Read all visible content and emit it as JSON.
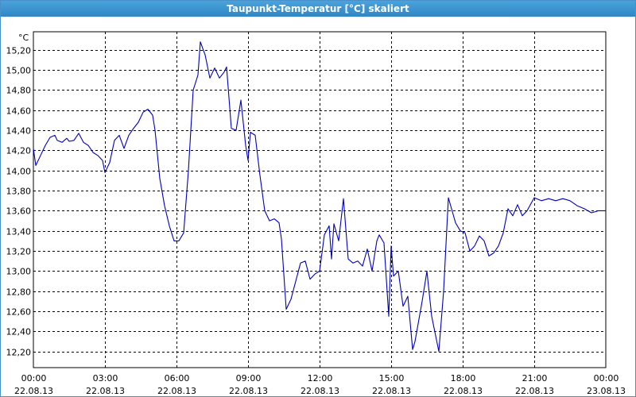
{
  "window": {
    "title": "Taupunkt-Temperatur [°C] skaliert"
  },
  "chart_data": {
    "type": "line",
    "title": "Taupunkt-Temperatur [°C] skaliert",
    "ylabel": "°C",
    "xlabel": "",
    "ylim": [
      12.04,
      15.38
    ],
    "xlim": [
      0,
      24
    ],
    "grid": true,
    "line_color": "#0000c0",
    "yticks": [
      12.2,
      12.4,
      12.6,
      12.8,
      13.0,
      13.2,
      13.4,
      13.6,
      13.8,
      14.0,
      14.2,
      14.4,
      14.6,
      14.8,
      15.0,
      15.2
    ],
    "ytick_labels": [
      "12,20",
      "12,40",
      "12,60",
      "12,80",
      "13,00",
      "13,20",
      "13,40",
      "13,60",
      "13,80",
      "14,00",
      "14,20",
      "14,40",
      "14,60",
      "14,80",
      "15,00",
      "15,20"
    ],
    "xticks": [
      {
        "time": "00:00",
        "date": "22.08.13"
      },
      {
        "time": "03:00",
        "date": "22.08.13"
      },
      {
        "time": "06:00",
        "date": "22.08.13"
      },
      {
        "time": "09:00",
        "date": "22.08.13"
      },
      {
        "time": "12:00",
        "date": "22.08.13"
      },
      {
        "time": "15:00",
        "date": "22.08.13"
      },
      {
        "time": "18:00",
        "date": "22.08.13"
      },
      {
        "time": "21:00",
        "date": "22.08.13"
      },
      {
        "time": "00:00",
        "date": "23.08.13"
      }
    ],
    "series": [
      {
        "x": [
          0.0,
          0.1,
          0.3,
          0.5,
          0.7,
          0.9,
          1.0,
          1.2,
          1.4,
          1.5,
          1.7,
          1.9,
          2.1,
          2.3,
          2.5,
          2.7,
          2.9,
          3.0,
          3.2,
          3.4,
          3.6,
          3.8,
          4.0,
          4.2,
          4.4,
          4.6,
          4.8,
          5.0,
          5.1,
          5.3,
          5.5,
          5.7,
          5.9,
          6.1,
          6.3,
          6.5,
          6.7,
          6.9,
          7.0,
          7.2,
          7.4,
          7.6,
          7.8,
          8.0,
          8.1,
          8.3,
          8.5,
          8.7,
          8.9,
          9.0,
          9.1,
          9.3,
          9.5,
          9.7,
          9.9,
          10.1,
          10.3,
          10.4,
          10.6,
          10.8,
          11.0,
          11.2,
          11.4,
          11.6,
          11.8,
          12.0,
          12.2,
          12.4,
          12.5,
          12.6,
          12.8,
          13.0,
          13.2,
          13.4,
          13.6,
          13.8,
          14.0,
          14.2,
          14.4,
          14.5,
          14.7,
          14.9,
          15.0,
          15.1,
          15.3,
          15.5,
          15.7,
          15.9,
          16.0,
          16.3,
          16.5,
          16.7,
          17.0,
          17.2,
          17.4,
          17.7,
          17.9,
          18.1,
          18.3,
          18.5,
          18.7,
          18.9,
          19.1,
          19.3,
          19.5,
          19.7,
          19.9,
          20.1,
          20.3,
          20.5,
          20.7,
          21.0,
          21.3,
          21.6,
          21.9,
          22.2,
          22.5,
          22.8,
          23.1,
          23.4,
          23.7,
          24.0
        ],
        "y": [
          14.22,
          14.05,
          14.15,
          14.25,
          14.33,
          14.35,
          14.3,
          14.28,
          14.32,
          14.29,
          14.3,
          14.37,
          14.28,
          14.25,
          14.18,
          14.15,
          14.1,
          13.98,
          14.08,
          14.3,
          14.35,
          14.22,
          14.35,
          14.42,
          14.48,
          14.58,
          14.61,
          14.55,
          14.4,
          13.92,
          13.65,
          13.45,
          13.3,
          13.3,
          13.38,
          14.0,
          14.8,
          14.95,
          15.28,
          15.15,
          14.92,
          15.02,
          14.92,
          14.98,
          15.03,
          14.42,
          14.4,
          14.7,
          14.25,
          14.1,
          14.38,
          14.35,
          13.95,
          13.6,
          13.5,
          13.52,
          13.48,
          13.32,
          12.62,
          12.72,
          12.9,
          13.08,
          13.1,
          12.92,
          12.97,
          13.0,
          13.36,
          13.45,
          13.12,
          13.47,
          13.3,
          13.72,
          13.12,
          13.08,
          13.1,
          13.05,
          13.22,
          13.0,
          13.3,
          13.36,
          13.28,
          12.55,
          13.25,
          12.95,
          13.0,
          12.65,
          12.75,
          12.22,
          12.3,
          12.7,
          13.0,
          12.55,
          12.2,
          12.8,
          13.73,
          13.48,
          13.4,
          13.38,
          13.2,
          13.25,
          13.35,
          13.3,
          13.15,
          13.18,
          13.25,
          13.38,
          13.62,
          13.55,
          13.66,
          13.55,
          13.6,
          13.73,
          13.7,
          13.72,
          13.7,
          13.72,
          13.7,
          13.65,
          13.62,
          13.58,
          13.6,
          13.6
        ]
      }
    ]
  }
}
